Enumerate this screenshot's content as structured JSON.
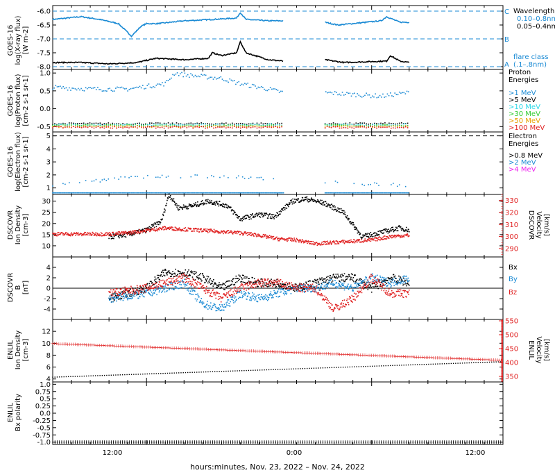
{
  "time_axis": {
    "ticks": [
      "12:00",
      "0:00",
      "12:00"
    ],
    "xlabel": "hours:minutes, Nov. 23, 2022 – Nov. 24, 2022"
  },
  "colors": {
    "black": "#000000",
    "blue": "#1a8ad4",
    "cyan": "#2bd9e8",
    "green": "#33cc33",
    "orange": "#e8a000",
    "red": "#e02020",
    "magenta": "#ee22ee"
  },
  "panels": {
    "xray": {
      "ylabel1": "GOES-16",
      "ylabel2": "log(X-ray flux)",
      "ylabel3": "[W m-2]",
      "legend_title": "Wavelength",
      "legend_items": [
        "0.10–0.8nm",
        "0.05–0.4nm"
      ],
      "class_letters": [
        "C",
        "B",
        "A"
      ],
      "flare_class_label": "flare class",
      "flare_class_sub": "(.1–.8nm)"
    },
    "proton": {
      "ylabel1": "GOES-16",
      "ylabel2": "log(Proton flux)",
      "ylabel3": "[cm-2 s-1 sr-1]",
      "legend_title1": "Proton",
      "legend_title2": "Energies",
      "legend_items": [
        ">1 MeV",
        ">5 MeV",
        ">10 MeV",
        ">30 MeV",
        ">50 MeV",
        ">100 MeV"
      ]
    },
    "electron": {
      "ylabel1": "GOES-16",
      "ylabel2": "log(Electron flux)",
      "ylabel3": "[cm-2 s-1 sr-1]",
      "legend_title1": "Electron",
      "legend_title2": "Energies",
      "legend_items": [
        ">0.8 MeV",
        ">2 MeV",
        ">4 MeV"
      ]
    },
    "dscovr_density": {
      "ylabel1": "DSCOVR",
      "ylabel2": "Ion Density",
      "ylabel3": "[cm-3]",
      "rlabel1": "DSCOVR",
      "rlabel2": "Velocity",
      "rlabel3": "[km/s]"
    },
    "dscovr_b": {
      "ylabel1": "DSCOVR",
      "ylabel2": "B",
      "ylabel3": "[nT]",
      "legend_items": [
        "Bx",
        "By",
        "Bz"
      ]
    },
    "enlil_density": {
      "ylabel1": "ENLIL",
      "ylabel2": "Ion Density",
      "ylabel3": "[cm-3]",
      "rlabel1": "ENLIL",
      "rlabel2": "Velocity",
      "rlabel3": "[km/s]"
    },
    "enlil_polarity": {
      "ylabel1": "ENLIL",
      "ylabel2": "Bx polarity"
    }
  },
  "chart_data": [
    {
      "type": "line",
      "name": "xray",
      "x_range_hours": [
        7,
        31
      ],
      "ylim": [
        -8.1,
        -5.8
      ],
      "yticks": [
        -8.0,
        -7.5,
        -7.0,
        -6.5,
        -6.0
      ],
      "reference_lines": [
        -6.0,
        -7.0,
        -8.0
      ],
      "gaps": [
        [
          19.3,
          21.5
        ]
      ],
      "series": [
        {
          "name": "0.10–0.8nm",
          "color": "#1a8ad4",
          "x": [
            7.0,
            8.5,
            9.5,
            10.5,
            11.2,
            11.7,
            12.0,
            12.6,
            14.0,
            15.5,
            16.8,
            17.0,
            17.3,
            18.5,
            19.3,
            21.5,
            22.2,
            24.5,
            24.8,
            25.5,
            26.0
          ],
          "y": [
            -6.3,
            -6.2,
            -6.3,
            -6.45,
            -6.9,
            -6.55,
            -6.45,
            -6.45,
            -6.35,
            -6.3,
            -6.25,
            -6.05,
            -6.3,
            -6.35,
            -6.35,
            -6.4,
            -6.5,
            -6.35,
            -6.2,
            -6.4,
            -6.4
          ]
        },
        {
          "name": "0.05–0.4nm",
          "color": "#000000",
          "x": [
            7.0,
            8.5,
            10.0,
            11.5,
            12.5,
            14.0,
            15.3,
            15.5,
            16.0,
            16.8,
            17.0,
            17.3,
            18.5,
            19.3,
            21.5,
            22.5,
            24.8,
            25.0,
            25.5,
            26.0
          ],
          "y": [
            -7.85,
            -7.85,
            -7.9,
            -7.85,
            -7.7,
            -7.75,
            -7.7,
            -7.5,
            -7.6,
            -7.5,
            -7.1,
            -7.5,
            -7.75,
            -7.8,
            -7.75,
            -7.85,
            -7.8,
            -7.6,
            -7.8,
            -7.85
          ]
        }
      ]
    },
    {
      "type": "scatter",
      "name": "proton",
      "x_range_hours": [
        7,
        31
      ],
      "ylim": [
        -0.65,
        1.1
      ],
      "yticks": [
        -0.5,
        0.0,
        0.5,
        1.0
      ],
      "gaps": [
        [
          19.3,
          21.5
        ]
      ],
      "series": [
        {
          "name": ">1 MeV",
          "color": "#1a8ad4",
          "x": [
            7.0,
            9.0,
            11.0,
            13.0,
            13.5,
            14.0,
            15.0,
            16.0,
            17.0,
            18.5,
            19.3,
            21.5,
            23.0,
            24.5,
            26.0
          ],
          "y": [
            0.6,
            0.55,
            0.55,
            0.7,
            1.0,
            0.95,
            0.9,
            0.85,
            0.7,
            0.55,
            0.45,
            0.45,
            0.4,
            0.35,
            0.45
          ]
        },
        {
          "name": ">5 MeV",
          "color": "#000000",
          "x": [
            7.0,
            26.0
          ],
          "y": [
            -0.42,
            -0.42
          ]
        },
        {
          "name": ">10 MeV",
          "color": "#2bd9e8",
          "x": [
            7.0,
            26.0
          ],
          "y": [
            -0.45,
            -0.45
          ]
        },
        {
          "name": ">30 MeV",
          "color": "#33cc33",
          "x": [
            7.0,
            26.0
          ],
          "y": [
            -0.47,
            -0.47
          ]
        },
        {
          "name": ">50 MeV",
          "color": "#e8a000",
          "x": [
            7.0,
            26.0
          ],
          "y": [
            -0.5,
            -0.5
          ]
        },
        {
          "name": ">100 MeV",
          "color": "#e02020",
          "x": [
            7.0,
            26.0
          ],
          "y": [
            -0.52,
            -0.52
          ]
        }
      ]
    },
    {
      "type": "scatter",
      "name": "electron",
      "x_range_hours": [
        7,
        31
      ],
      "ylim": [
        0.5,
        5.3
      ],
      "yticks": [
        1,
        2,
        3,
        4,
        5
      ],
      "reference_lines": [
        5.0
      ],
      "gaps": [
        [
          19.3,
          21.5
        ]
      ],
      "series": [
        {
          "name": ">0.8 MeV",
          "color": "#000000",
          "x": [],
          "y": []
        },
        {
          "name": ">2 MeV",
          "color": "#1a8ad4",
          "x": [
            7.0,
            9.0,
            11.0,
            13.0,
            15.0,
            17.0,
            19.0,
            21.5,
            23.5,
            26.0
          ],
          "y": [
            1.2,
            1.5,
            1.8,
            1.9,
            1.9,
            1.8,
            1.7,
            1.5,
            1.3,
            1.2
          ]
        },
        {
          "name": ">4 MeV",
          "color": "#ee22ee",
          "x": [],
          "y": []
        },
        {
          "name": "baseline",
          "color": "#1a8ad4",
          "x": [
            7.0,
            26.0
          ],
          "y": [
            0.62,
            0.62
          ]
        }
      ]
    },
    {
      "type": "line",
      "name": "dscovr_density",
      "x_range_hours": [
        7,
        31
      ],
      "ylim": [
        5,
        33
      ],
      "yticks": [
        10,
        15,
        20,
        25,
        30
      ],
      "right_ylim": [
        283,
        335
      ],
      "right_yticks": [
        290,
        300,
        310,
        320,
        330
      ],
      "series": [
        {
          "name": "Ion Density",
          "color": "#000000",
          "axis": "left",
          "x": [
            10.0,
            11.0,
            12.0,
            12.8,
            13.2,
            13.7,
            14.5,
            15.3,
            16.3,
            17.0,
            18.0,
            18.8,
            19.8,
            20.5,
            21.5,
            22.5,
            23.5,
            24.5,
            25.5,
            26.0
          ],
          "y": [
            14,
            15,
            17,
            21,
            33,
            27,
            28,
            30,
            28,
            22,
            24,
            23,
            30,
            31,
            29,
            25,
            14,
            16,
            18,
            17
          ]
        },
        {
          "name": "Velocity",
          "color": "#e02020",
          "axis": "right",
          "x": [
            7.0,
            10.0,
            11.0,
            12.0,
            13.0,
            14.0,
            15.0,
            16.0,
            17.0,
            18.0,
            19.0,
            20.0,
            21.0,
            22.0,
            23.0,
            24.0,
            25.0,
            26.0
          ],
          "y": [
            302,
            302,
            303,
            305,
            307,
            306,
            305,
            304,
            303,
            301,
            298,
            297,
            294,
            295,
            296,
            297,
            300,
            301
          ]
        }
      ]
    },
    {
      "type": "line",
      "name": "dscovr_b",
      "x_range_hours": [
        7,
        31
      ],
      "ylim": [
        -6,
        6
      ],
      "yticks": [
        -4,
        -2,
        0,
        2,
        4
      ],
      "reference_lines": [
        0
      ],
      "series": [
        {
          "name": "Bx",
          "color": "#000000",
          "x": [
            10.0,
            12.0,
            13.0,
            14.0,
            15.0,
            16.0,
            17.0,
            18.0,
            19.0,
            20.0,
            21.0,
            22.0,
            23.0,
            24.0,
            25.0,
            26.0
          ],
          "y": [
            -2,
            0,
            3,
            3,
            2,
            0,
            2,
            1,
            1,
            0,
            1,
            2,
            2,
            0,
            2,
            1
          ]
        },
        {
          "name": "By",
          "color": "#1a8ad4",
          "x": [
            10.0,
            12.0,
            13.0,
            14.0,
            15.0,
            16.0,
            17.0,
            18.0,
            19.0,
            20.0,
            21.0,
            22.0,
            23.0,
            24.0,
            25.0,
            26.0
          ],
          "y": [
            -2,
            -1,
            0,
            1,
            -3,
            -4,
            -1,
            -2,
            -1,
            0,
            0,
            1,
            0,
            2,
            1,
            2
          ]
        },
        {
          "name": "Bz",
          "color": "#e02020",
          "x": [
            10.0,
            12.0,
            13.0,
            14.0,
            15.0,
            16.0,
            17.0,
            18.0,
            19.0,
            20.0,
            21.0,
            22.0,
            23.0,
            24.0,
            25.0,
            26.0
          ],
          "y": [
            -1,
            0,
            1,
            2,
            0,
            -2,
            0,
            1,
            1,
            0,
            0,
            -4,
            -2,
            2,
            -1,
            -1
          ]
        }
      ]
    },
    {
      "type": "line",
      "name": "enlil_density",
      "x_range_hours": [
        7,
        31
      ],
      "ylim": [
        3.5,
        14
      ],
      "yticks": [
        4,
        6,
        8,
        10,
        12
      ],
      "right_ylim": [
        330,
        555
      ],
      "right_yticks": [
        350,
        400,
        450,
        500,
        550
      ],
      "series": [
        {
          "name": "Ion Density",
          "color": "#000000",
          "axis": "left",
          "x": [
            7,
            31
          ],
          "y": [
            4.3,
            6.9
          ]
        },
        {
          "name": "Velocity",
          "color": "#e02020",
          "axis": "right",
          "x": [
            7,
            31
          ],
          "y": [
            470,
            410
          ]
        }
      ]
    },
    {
      "type": "line",
      "name": "enlil_polarity",
      "x_range_hours": [
        7,
        31
      ],
      "ylim": [
        -1.08,
        1.08
      ],
      "yticks": [
        -1.0,
        -0.75,
        -0.5,
        -0.25,
        0.0,
        0.25,
        0.5,
        0.75,
        1.0
      ],
      "series": [
        {
          "name": "Bx polarity",
          "color": "#000000",
          "x": [
            7,
            31
          ],
          "y": [
            -1.0,
            -1.0
          ]
        }
      ]
    }
  ]
}
